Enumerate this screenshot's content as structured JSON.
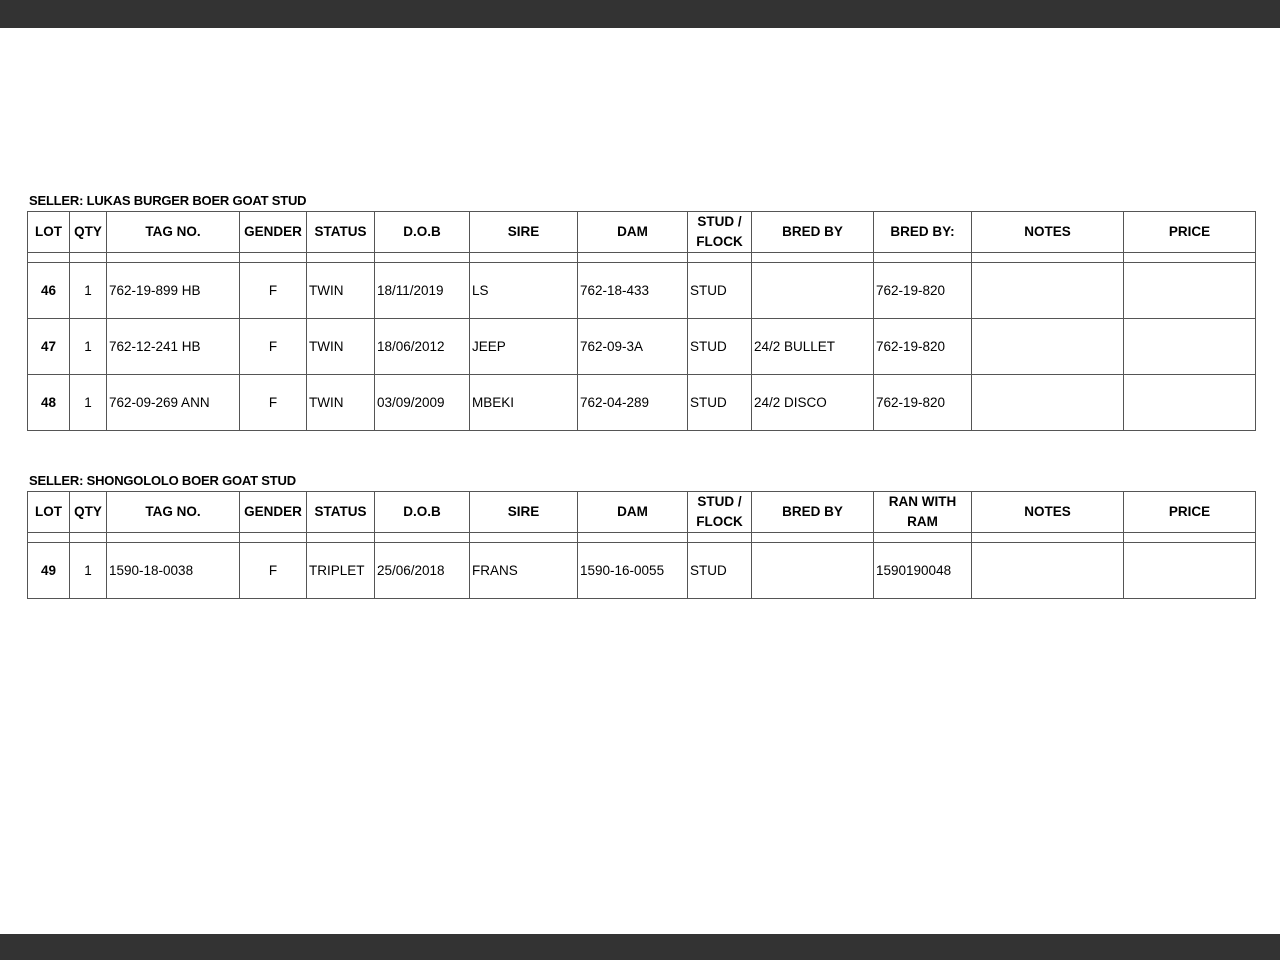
{
  "sections": [
    {
      "seller": "SELLER: LUKAS BURGER BOER GOAT STUD",
      "headers": [
        "LOT",
        "QTY",
        "TAG NO.",
        "GENDER",
        "STATUS",
        "D.O.B",
        "SIRE",
        "DAM",
        "STUD / FLOCK",
        "BRED BY",
        "BRED BY:",
        "NOTES",
        "PRICE"
      ],
      "rows": [
        [
          "46",
          "1",
          "762-19-899 HB",
          "F",
          "TWIN",
          "18/11/2019",
          "LS",
          "762-18-433",
          "STUD",
          "",
          "762-19-820",
          "",
          ""
        ],
        [
          "47",
          "1",
          "762-12-241 HB",
          "F",
          "TWIN",
          "18/06/2012",
          "JEEP",
          "762-09-3A",
          "STUD",
          "24/2 BULLET",
          "762-19-820",
          "",
          ""
        ],
        [
          "48",
          "1",
          "762-09-269 ANN",
          "F",
          "TWIN",
          "03/09/2009",
          "MBEKI",
          "762-04-289",
          "STUD",
          "24/2 DISCO",
          "762-19-820",
          "",
          ""
        ]
      ]
    },
    {
      "seller": "SELLER: SHONGOLOLO BOER GOAT STUD",
      "headers": [
        "LOT",
        "QTY",
        "TAG NO.",
        "GENDER",
        "STATUS",
        "D.O.B",
        "SIRE",
        "DAM",
        "STUD / FLOCK",
        "BRED BY",
        "RAN WITH RAM",
        "NOTES",
        "PRICE"
      ],
      "rows": [
        [
          "49",
          "1",
          "1590-18-0038",
          "F",
          "TRIPLET",
          "25/06/2018",
          "FRANS",
          "1590-16-0055",
          "STUD",
          "",
          "1590190048",
          "",
          ""
        ]
      ]
    }
  ]
}
